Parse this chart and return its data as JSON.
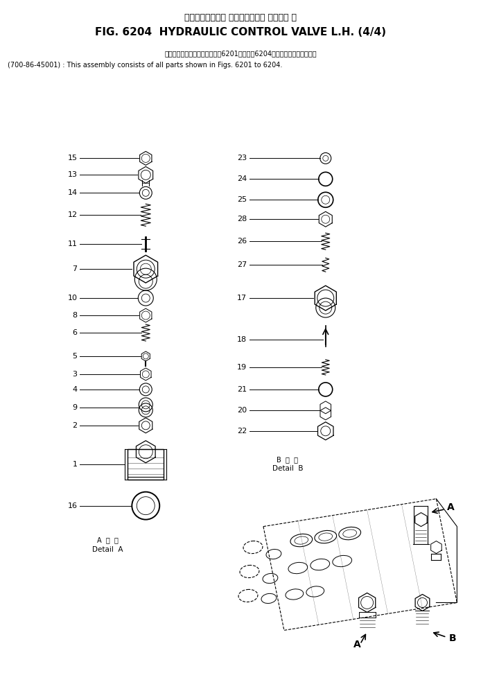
{
  "title_jp": "ハイドロリック　 コントロール　 バルブ　 左",
  "title_en": "FIG. 6204  HYDRAULIC CONTROL VALVE L.H. (4/4)",
  "note_jp": "このアセンブリの構成部品は第6201図から第6204図の部品まで含みます。",
  "note_en": "(700-86-45001) : This assembly consists of all parts shown in Figs. 6201 to 6204.",
  "bg_color": "#ffffff",
  "line_color": "#000000"
}
